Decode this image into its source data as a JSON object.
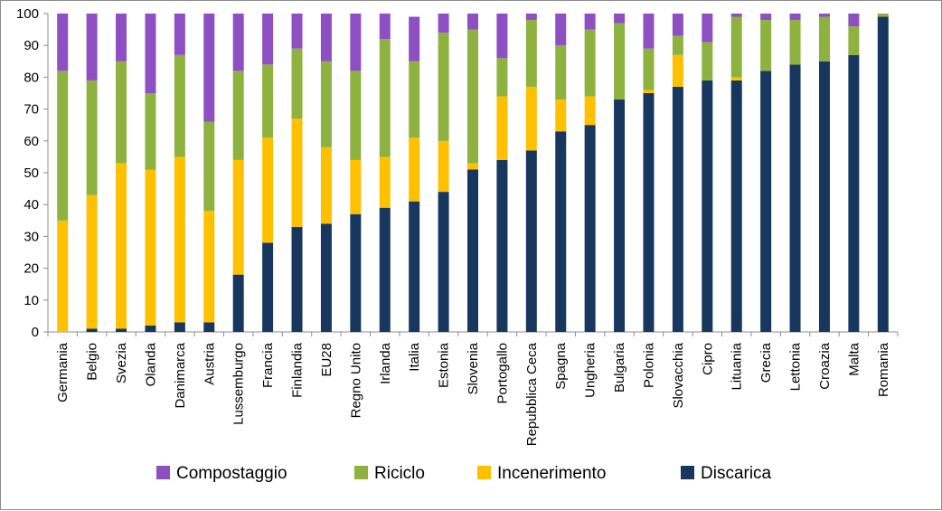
{
  "colors": {
    "Discarica": "#17375e",
    "Incenerimento": "#ffc000",
    "Riciclo": "#8db23f",
    "Compostaggio": "#8e4fc2",
    "axis": "#8c8c8c"
  },
  "chart_data": {
    "type": "bar",
    "stacked": true,
    "title": "",
    "xlabel": "",
    "ylabel": "",
    "ylim": [
      0,
      100
    ],
    "yticks": [
      0,
      10,
      20,
      30,
      40,
      50,
      60,
      70,
      80,
      90,
      100
    ],
    "categories": [
      "Germania",
      "Belgio",
      "Svezia",
      "Olanda",
      "Danimarca",
      "Austria",
      "Lussemburgo",
      "Francia",
      "Finlandia",
      "EU28",
      "Regno Unito",
      "Irlanda",
      "Italia",
      "Estonia",
      "Slovenia",
      "Portogallo",
      "Repubblica Ceca",
      "Spagna",
      "Ungheria",
      "Bulgaria",
      "Polonia",
      "Slovacchia",
      "Cipro",
      "Lituania",
      "Grecia",
      "Lettonia",
      "Croazia",
      "Malta",
      "Romania"
    ],
    "series": [
      {
        "name": "Discarica",
        "values": [
          0,
          1,
          1,
          2,
          3,
          3,
          18,
          28,
          33,
          34,
          37,
          39,
          41,
          44,
          51,
          54,
          57,
          63,
          65,
          73,
          75,
          77,
          79,
          79,
          82,
          84,
          85,
          87,
          99
        ]
      },
      {
        "name": "Incenerimento",
        "values": [
          35,
          42,
          52,
          49,
          52,
          35,
          36,
          33,
          34,
          24,
          17,
          16,
          20,
          16,
          2,
          20,
          20,
          10,
          9,
          0,
          1,
          10,
          0,
          1,
          0,
          0,
          0,
          0,
          0
        ]
      },
      {
        "name": "Riciclo",
        "values": [
          47,
          36,
          32,
          24,
          32,
          28,
          28,
          23,
          22,
          27,
          28,
          37,
          24,
          34,
          42,
          12,
          21,
          17,
          21,
          24,
          13,
          6,
          12,
          19,
          16,
          14,
          14,
          9,
          1
        ]
      },
      {
        "name": "Compostaggio",
        "values": [
          18,
          21,
          15,
          25,
          13,
          34,
          18,
          16,
          11,
          15,
          18,
          8,
          14,
          6,
          5,
          14,
          2,
          10,
          5,
          3,
          11,
          7,
          9,
          1,
          2,
          2,
          1,
          4,
          0
        ]
      }
    ],
    "legend": {
      "position": "bottom",
      "order": [
        "Compostaggio",
        "Riciclo",
        "Incenerimento",
        "Discarica"
      ]
    }
  }
}
